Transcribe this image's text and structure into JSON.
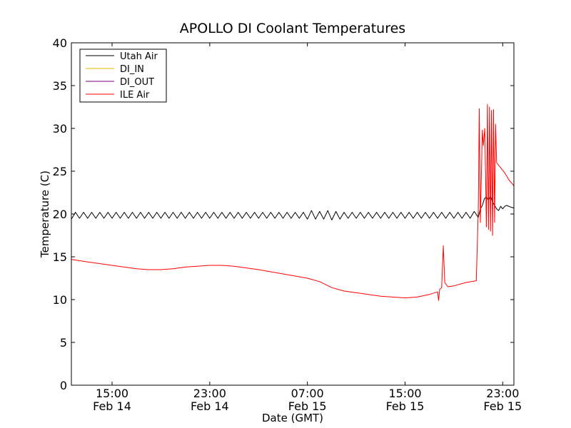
{
  "chart_data": {
    "type": "line",
    "title": "APOLLO DI Coolant Temperatures",
    "xlabel": "Date (GMT)",
    "ylabel": "Temperature (C)",
    "x_unit": "datetime (GMT)",
    "xlim": [
      "2014-02-14 11:40",
      "2014-02-15 23:55"
    ],
    "ylim": [
      0,
      40
    ],
    "yticks": [
      0,
      5,
      10,
      15,
      20,
      25,
      30,
      35,
      40
    ],
    "xticks": [
      {
        "x": "2014-02-14 15:00",
        "time": "15:00",
        "date": "Feb 14"
      },
      {
        "x": "2014-02-14 23:00",
        "time": "23:00",
        "date": "Feb 14"
      },
      {
        "x": "2014-02-15 07:00",
        "time": "07:00",
        "date": "Feb 15"
      },
      {
        "x": "2014-02-15 15:00",
        "time": "15:00",
        "date": "Feb 15"
      },
      {
        "x": "2014-02-15 23:00",
        "time": "23:00",
        "date": "Feb 15"
      }
    ],
    "grid": false,
    "legend_position": "top-left",
    "series": [
      {
        "name": "Utah Air",
        "color": "#000000",
        "points": [
          [
            "2014-02-14 11:40",
            19.4
          ],
          [
            "2014-02-14 12:00",
            20.2
          ],
          [
            "2014-02-14 12:20",
            19.5
          ],
          [
            "2014-02-14 12:40",
            20.2
          ],
          [
            "2014-02-14 13:00",
            19.5
          ],
          [
            "2014-02-14 13:20",
            20.2
          ],
          [
            "2014-02-14 13:40",
            19.5
          ],
          [
            "2014-02-14 14:00",
            20.2
          ],
          [
            "2014-02-14 14:20",
            19.5
          ],
          [
            "2014-02-14 14:40",
            20.2
          ],
          [
            "2014-02-14 15:00",
            19.5
          ],
          [
            "2014-02-14 15:20",
            20.2
          ],
          [
            "2014-02-14 15:40",
            19.5
          ],
          [
            "2014-02-14 16:00",
            20.2
          ],
          [
            "2014-02-14 16:20",
            19.5
          ],
          [
            "2014-02-14 16:40",
            20.2
          ],
          [
            "2014-02-14 17:00",
            19.5
          ],
          [
            "2014-02-14 17:20",
            20.2
          ],
          [
            "2014-02-14 17:40",
            19.5
          ],
          [
            "2014-02-14 18:00",
            20.2
          ],
          [
            "2014-02-14 18:20",
            19.5
          ],
          [
            "2014-02-14 18:40",
            20.2
          ],
          [
            "2014-02-14 19:00",
            19.5
          ],
          [
            "2014-02-14 19:20",
            20.2
          ],
          [
            "2014-02-14 19:40",
            19.5
          ],
          [
            "2014-02-14 20:00",
            20.2
          ],
          [
            "2014-02-14 20:20",
            19.5
          ],
          [
            "2014-02-14 20:40",
            20.2
          ],
          [
            "2014-02-14 21:00",
            19.5
          ],
          [
            "2014-02-14 21:20",
            20.2
          ],
          [
            "2014-02-14 21:40",
            19.5
          ],
          [
            "2014-02-14 22:00",
            20.2
          ],
          [
            "2014-02-14 22:20",
            19.5
          ],
          [
            "2014-02-14 22:40",
            20.2
          ],
          [
            "2014-02-14 23:00",
            19.5
          ],
          [
            "2014-02-14 23:20",
            20.2
          ],
          [
            "2014-02-14 23:40",
            19.5
          ],
          [
            "2014-02-15 00:00",
            20.2
          ],
          [
            "2014-02-15 00:20",
            19.5
          ],
          [
            "2014-02-15 00:40",
            20.2
          ],
          [
            "2014-02-15 01:00",
            19.5
          ],
          [
            "2014-02-15 01:20",
            20.2
          ],
          [
            "2014-02-15 01:40",
            19.5
          ],
          [
            "2014-02-15 02:00",
            20.2
          ],
          [
            "2014-02-15 02:20",
            19.5
          ],
          [
            "2014-02-15 02:40",
            20.2
          ],
          [
            "2014-02-15 03:00",
            19.5
          ],
          [
            "2014-02-15 03:20",
            20.2
          ],
          [
            "2014-02-15 03:40",
            19.5
          ],
          [
            "2014-02-15 04:00",
            20.2
          ],
          [
            "2014-02-15 04:20",
            19.5
          ],
          [
            "2014-02-15 04:40",
            20.2
          ],
          [
            "2014-02-15 05:00",
            19.5
          ],
          [
            "2014-02-15 05:20",
            20.2
          ],
          [
            "2014-02-15 05:40",
            19.5
          ],
          [
            "2014-02-15 06:00",
            20.2
          ],
          [
            "2014-02-15 06:20",
            19.5
          ],
          [
            "2014-02-15 06:40",
            20.2
          ],
          [
            "2014-02-15 07:00",
            19.4
          ],
          [
            "2014-02-15 07:20",
            20.4
          ],
          [
            "2014-02-15 07:40",
            19.4
          ],
          [
            "2014-02-15 08:00",
            20.3
          ],
          [
            "2014-02-15 08:20",
            19.4
          ],
          [
            "2014-02-15 08:40",
            20.4
          ],
          [
            "2014-02-15 09:00",
            19.3
          ],
          [
            "2014-02-15 09:20",
            20.3
          ],
          [
            "2014-02-15 09:40",
            19.4
          ],
          [
            "2014-02-15 10:00",
            20.2
          ],
          [
            "2014-02-15 10:20",
            19.5
          ],
          [
            "2014-02-15 10:40",
            20.2
          ],
          [
            "2014-02-15 11:00",
            19.5
          ],
          [
            "2014-02-15 11:20",
            20.2
          ],
          [
            "2014-02-15 11:40",
            19.5
          ],
          [
            "2014-02-15 12:00",
            20.2
          ],
          [
            "2014-02-15 12:20",
            19.5
          ],
          [
            "2014-02-15 12:40",
            20.2
          ],
          [
            "2014-02-15 13:00",
            19.5
          ],
          [
            "2014-02-15 13:20",
            20.2
          ],
          [
            "2014-02-15 13:40",
            19.5
          ],
          [
            "2014-02-15 14:00",
            20.2
          ],
          [
            "2014-02-15 14:20",
            19.5
          ],
          [
            "2014-02-15 14:40",
            20.2
          ],
          [
            "2014-02-15 15:00",
            19.5
          ],
          [
            "2014-02-15 15:20",
            20.2
          ],
          [
            "2014-02-15 15:40",
            19.5
          ],
          [
            "2014-02-15 16:00",
            20.2
          ],
          [
            "2014-02-15 16:20",
            19.5
          ],
          [
            "2014-02-15 16:40",
            20.2
          ],
          [
            "2014-02-15 17:00",
            19.5
          ],
          [
            "2014-02-15 17:20",
            20.2
          ],
          [
            "2014-02-15 17:40",
            19.5
          ],
          [
            "2014-02-15 18:00",
            20.2
          ],
          [
            "2014-02-15 18:20",
            19.5
          ],
          [
            "2014-02-15 18:40",
            20.2
          ],
          [
            "2014-02-15 19:00",
            19.5
          ],
          [
            "2014-02-15 19:20",
            20.2
          ],
          [
            "2014-02-15 19:40",
            19.5
          ],
          [
            "2014-02-15 20:00",
            20.2
          ],
          [
            "2014-02-15 20:20",
            19.5
          ],
          [
            "2014-02-15 20:40",
            20.3
          ],
          [
            "2014-02-15 21:00",
            19.6
          ],
          [
            "2014-02-15 21:10",
            20.6
          ],
          [
            "2014-02-15 21:20",
            21.0
          ],
          [
            "2014-02-15 21:30",
            21.8
          ],
          [
            "2014-02-15 21:40",
            22.0
          ],
          [
            "2014-02-15 21:50",
            21.6
          ],
          [
            "2014-02-15 22:00",
            22.1
          ],
          [
            "2014-02-15 22:10",
            21.4
          ],
          [
            "2014-02-15 22:20",
            21.0
          ],
          [
            "2014-02-15 22:30",
            20.6
          ],
          [
            "2014-02-15 22:40",
            20.4
          ],
          [
            "2014-02-15 22:50",
            20.9
          ],
          [
            "2014-02-15 23:00",
            20.6
          ],
          [
            "2014-02-15 23:10",
            20.9
          ],
          [
            "2014-02-15 23:20",
            21.0
          ],
          [
            "2014-02-15 23:40",
            20.8
          ],
          [
            "2014-02-15 23:55",
            20.7
          ]
        ]
      },
      {
        "name": "DI_IN",
        "color": "#e6b800",
        "points": []
      },
      {
        "name": "DI_OUT",
        "color": "#800080",
        "points": []
      },
      {
        "name": "ILE Air",
        "color": "#ff0000",
        "points": [
          [
            "2014-02-14 11:40",
            14.7
          ],
          [
            "2014-02-14 13:00",
            14.4
          ],
          [
            "2014-02-14 15:00",
            14.0
          ],
          [
            "2014-02-14 17:00",
            13.6
          ],
          [
            "2014-02-14 18:00",
            13.5
          ],
          [
            "2014-02-14 19:00",
            13.5
          ],
          [
            "2014-02-14 20:00",
            13.6
          ],
          [
            "2014-02-14 21:00",
            13.8
          ],
          [
            "2014-02-14 23:00",
            14.0
          ],
          [
            "2014-02-15 00:00",
            14.0
          ],
          [
            "2014-02-15 01:00",
            13.9
          ],
          [
            "2014-02-15 03:00",
            13.5
          ],
          [
            "2014-02-15 05:00",
            13.0
          ],
          [
            "2014-02-15 07:00",
            12.5
          ],
          [
            "2014-02-15 08:00",
            12.1
          ],
          [
            "2014-02-15 09:00",
            11.4
          ],
          [
            "2014-02-15 10:00",
            11.0
          ],
          [
            "2014-02-15 11:00",
            10.8
          ],
          [
            "2014-02-15 13:00",
            10.4
          ],
          [
            "2014-02-15 15:00",
            10.2
          ],
          [
            "2014-02-15 16:00",
            10.3
          ],
          [
            "2014-02-15 17:00",
            10.6
          ],
          [
            "2014-02-15 17:40",
            10.9
          ],
          [
            "2014-02-15 17:45",
            9.9
          ],
          [
            "2014-02-15 17:50",
            11.2
          ],
          [
            "2014-02-15 18:00",
            11.4
          ],
          [
            "2014-02-15 18:08",
            16.3
          ],
          [
            "2014-02-15 18:15",
            12.0
          ],
          [
            "2014-02-15 18:30",
            11.5
          ],
          [
            "2014-02-15 19:00",
            11.6
          ],
          [
            "2014-02-15 20:00",
            12.0
          ],
          [
            "2014-02-15 20:50",
            12.2
          ],
          [
            "2014-02-15 21:00",
            20.5
          ],
          [
            "2014-02-15 21:05",
            32.3
          ],
          [
            "2014-02-15 21:10",
            19.0
          ],
          [
            "2014-02-15 21:20",
            29.8
          ],
          [
            "2014-02-15 21:25",
            28.0
          ],
          [
            "2014-02-15 21:32",
            30.0
          ],
          [
            "2014-02-15 21:40",
            18.5
          ],
          [
            "2014-02-15 21:45",
            32.8
          ],
          [
            "2014-02-15 21:50",
            18.2
          ],
          [
            "2014-02-15 21:55",
            32.5
          ],
          [
            "2014-02-15 22:00",
            18.0
          ],
          [
            "2014-02-15 22:05",
            32.1
          ],
          [
            "2014-02-15 22:10",
            17.5
          ],
          [
            "2014-02-15 22:15",
            32.2
          ],
          [
            "2014-02-15 22:20",
            19.0
          ],
          [
            "2014-02-15 22:25",
            30.5
          ],
          [
            "2014-02-15 22:30",
            26.0
          ],
          [
            "2014-02-15 22:50",
            25.4
          ],
          [
            "2014-02-15 23:10",
            24.8
          ],
          [
            "2014-02-15 23:30",
            24.0
          ],
          [
            "2014-02-15 23:55",
            23.3
          ]
        ]
      }
    ]
  }
}
